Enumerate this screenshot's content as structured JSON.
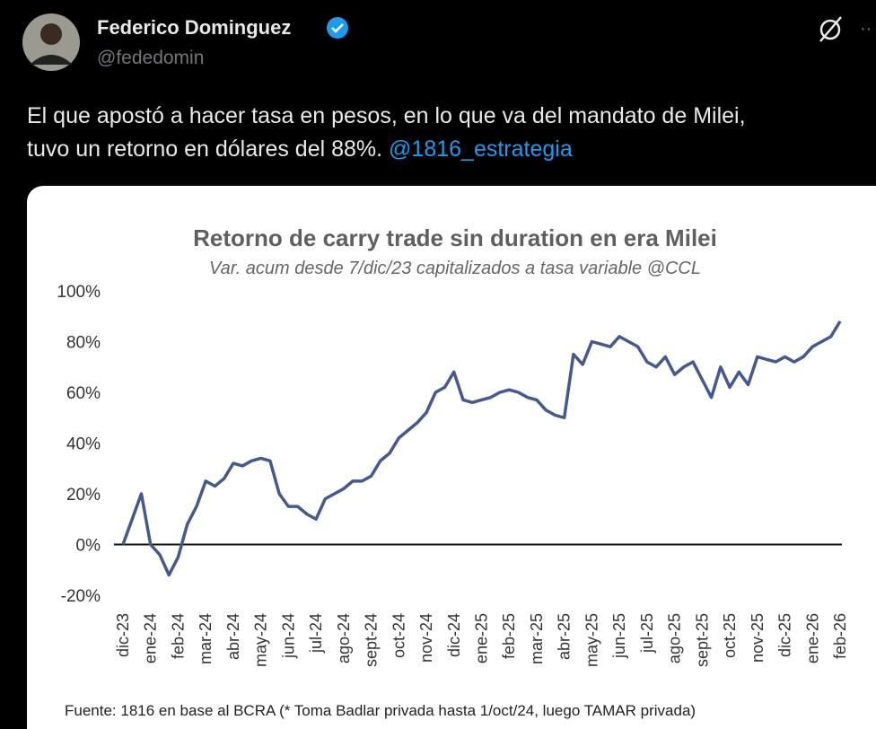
{
  "author": {
    "name": "Federico Dominguez",
    "handle": "@fededomin"
  },
  "tweet": {
    "lines": [
      "El que apostó a hacer tasa en pesos, en lo que va del mandato de Milei,",
      "tuvo un retorno en dólares del 88%."
    ],
    "mention": "@1816_estrategia"
  },
  "chart_data": {
    "type": "line",
    "title": "Retorno de carry trade sin duration en era Milei",
    "subtitle": "Var. acum desde 7/dic/23 capitalizados a tasa variable @CCL",
    "source": "Fuente: 1816 en base al BCRA (* Toma Badlar privada hasta 1/oct/24, luego TAMAR privada)",
    "categories": [
      "dic-23",
      null,
      null,
      "ene-24",
      null,
      null,
      "feb-24",
      null,
      null,
      "mar-24",
      null,
      null,
      "abr-24",
      null,
      null,
      "may-24",
      null,
      null,
      "jun-24",
      null,
      null,
      "jul-24",
      null,
      null,
      "ago-24",
      null,
      null,
      "sept-24",
      null,
      null,
      "oct-24",
      null,
      null,
      "nov-24",
      null,
      null,
      "dic-24",
      null,
      null,
      "ene-25",
      null,
      null,
      "feb-25",
      null,
      null,
      "mar-25",
      null,
      null,
      "abr-25",
      null,
      null,
      "may-25",
      null,
      null,
      "jun-25",
      null,
      null,
      "jul-25",
      null,
      null,
      "ago-25",
      null,
      null,
      "sept-25",
      null,
      null,
      "oct-25",
      null,
      null,
      "nov-25",
      null,
      null,
      "dic-25",
      null,
      null,
      "ene-26",
      null,
      null,
      "feb-26"
    ],
    "series": [
      {
        "name": "Retorno",
        "color": "#44598f",
        "values": [
          0,
          10,
          20,
          0,
          -4,
          -12,
          -5,
          8,
          15,
          25,
          23,
          26,
          32,
          31,
          33,
          34,
          33,
          20,
          15,
          15,
          12,
          10,
          18,
          20,
          22,
          25,
          25,
          27,
          33,
          36,
          42,
          45,
          48,
          52,
          60,
          62,
          68,
          57,
          56,
          57,
          58,
          60,
          61,
          60,
          58,
          57,
          53,
          51,
          50,
          75,
          71,
          80,
          79,
          78,
          82,
          80,
          78,
          72,
          70,
          74,
          67,
          70,
          72,
          65,
          58,
          70,
          62,
          68,
          63,
          74,
          73,
          72,
          74,
          72,
          74,
          78,
          80,
          82,
          88
        ]
      }
    ],
    "ylim": [
      -20,
      100
    ],
    "yticks": [
      {
        "value": -20,
        "label": "-20%"
      },
      {
        "value": 0,
        "label": "0%"
      },
      {
        "value": 20,
        "label": "20%"
      },
      {
        "value": 40,
        "label": "40%"
      },
      {
        "value": 60,
        "label": "60%"
      },
      {
        "value": 80,
        "label": "80%"
      },
      {
        "value": 100,
        "label": "100%"
      }
    ]
  }
}
